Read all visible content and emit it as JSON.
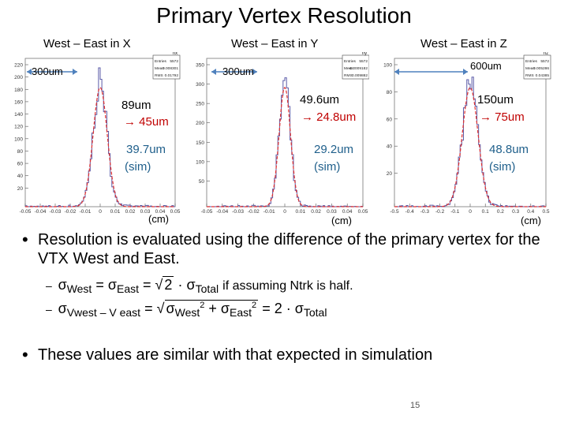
{
  "slide": {
    "title": "Primary Vertex Resolution",
    "page_number": "15"
  },
  "plots": [
    {
      "label": "West – East in X",
      "stats_name": "hx",
      "stats": {
        "entries_label": "Entries",
        "entries": "5572",
        "mean_label": "Mean",
        "mean": "0.008301",
        "rms_label": "RMS",
        "rms": "0.01792"
      },
      "width_marker": "300um",
      "res_data": "89um",
      "res_corrected": "45um",
      "res_sim": "39.7um",
      "sim_label": "(sim)",
      "unit": "(cm)",
      "yticks": [
        "220",
        "200",
        "180",
        "160",
        "140",
        "120",
        "100",
        "80",
        "60",
        "40",
        "20"
      ],
      "xticks": [
        "-0.05",
        "-0.04",
        "-0.03",
        "-0.02",
        "-0.01",
        "0",
        "0.01",
        "0.02",
        "0.03",
        "0.04",
        "0.05"
      ],
      "line_color": "#5b5ba8",
      "fit_color": "#e03030"
    },
    {
      "label": "West – East in Y",
      "stats_name": "hy",
      "stats": {
        "entries_label": "Entries",
        "entries": "5572",
        "mean_label": "Mean",
        "mean": "-0.0009182",
        "rms_label": "RMS",
        "rms": "0.009882"
      },
      "width_marker": "300um",
      "res_data": "49.6um",
      "res_corrected": "24.8um",
      "res_sim": "29.2um",
      "sim_label": "(sim)",
      "unit": "(cm)",
      "yticks": [
        "350",
        "300",
        "250",
        "200",
        "150",
        "100",
        "50"
      ],
      "xticks": [
        "-0.05",
        "-0.04",
        "-0.03",
        "-0.02",
        "-0.01",
        "0",
        "0.01",
        "0.02",
        "0.03",
        "0.04",
        "0.05"
      ],
      "line_color": "#5b5ba8",
      "fit_color": "#e03030"
    },
    {
      "label": "West – East in Z",
      "stats_name": "hz",
      "stats": {
        "entries_label": "Entries",
        "entries": "5572",
        "mean_label": "Mean",
        "mean": "0.005286",
        "rms_label": "RMS",
        "rms": "0.04385"
      },
      "width_marker": "600um",
      "res_data": "150um",
      "res_corrected": "75um",
      "res_sim": "48.8um",
      "sim_label": "(sim)",
      "unit": "(cm)",
      "yticks": [
        "100",
        "80",
        "60",
        "40",
        "20"
      ],
      "xticks": [
        "-0.5",
        "-0.4",
        "-0.3",
        "-0.2",
        "-0.1",
        "0",
        "0.1",
        "0.2",
        "0.3",
        "0.4",
        "0.5"
      ],
      "line_color": "#5b5ba8",
      "fit_color": "#e03030"
    }
  ],
  "bullets": [
    "Resolution is evaluated using the difference of the primary vertex  for the VTX West and East.",
    "These values are similar with that expected in simulation"
  ],
  "formulas": {
    "f1": {
      "sigma": "σ",
      "west": "West",
      "eq": "=",
      "east": "East",
      "sqrt": "2",
      "dot": "·",
      "total": "Total",
      "note": "if assuming Ntrk is half."
    },
    "f2": {
      "sigma": "σ",
      "vwest": "Vwest – V east",
      "eq": "=",
      "west": "West",
      "east": "East",
      "sq": "2",
      "plus": "+",
      "two": "2",
      "dot": "·",
      "total": "Total"
    }
  }
}
